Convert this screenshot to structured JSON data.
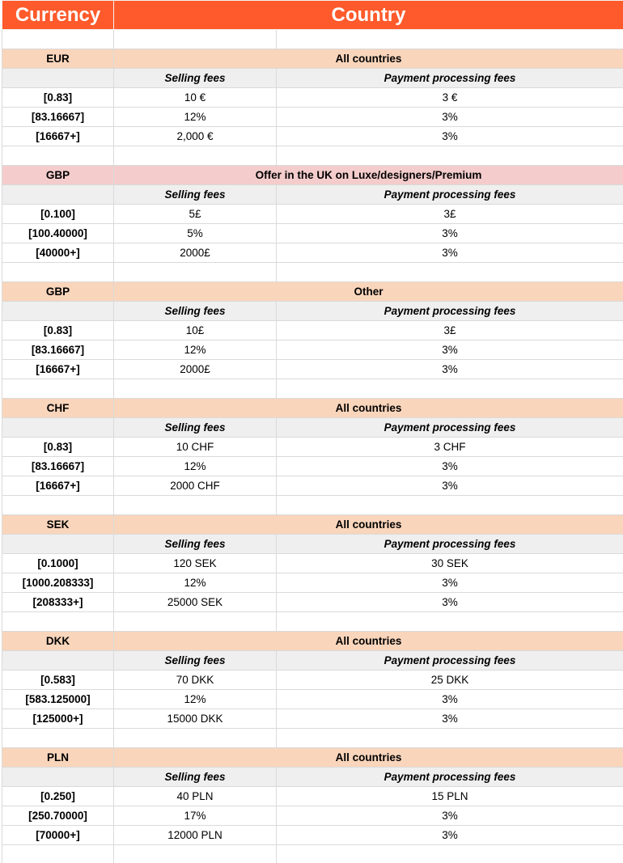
{
  "header": {
    "currency": "Currency",
    "country": "Country"
  },
  "colors": {
    "header": "#ff5a2b",
    "group": "#f9d5bb",
    "group_highlight": "#f4cccc",
    "subheader": "#efefef"
  },
  "subheader": {
    "selling": "Selling fees",
    "payment": "Payment processing fees"
  },
  "blocks": [
    {
      "currency": "EUR",
      "country": "All countries",
      "highlight": false,
      "rows": [
        {
          "range": "[0.83]",
          "selling": "10 €",
          "payment": "3 €"
        },
        {
          "range": "[83.16667]",
          "selling": "12%",
          "payment": "3%"
        },
        {
          "range": "[16667+]",
          "selling": "2,000 €",
          "payment": "3%"
        }
      ]
    },
    {
      "currency": "GBP",
      "country": "Offer in the UK on Luxe/designers/Premium",
      "highlight": true,
      "rows": [
        {
          "range": "[0.100]",
          "selling": "5£",
          "payment": "3£"
        },
        {
          "range": "[100.40000]",
          "selling": "5%",
          "payment": "3%"
        },
        {
          "range": "[40000+]",
          "selling": "2000£",
          "payment": "3%"
        }
      ]
    },
    {
      "currency": "GBP",
      "country": "Other",
      "highlight": false,
      "rows": [
        {
          "range": "[0.83]",
          "selling": "10£",
          "payment": "3£"
        },
        {
          "range": "[83.16667]",
          "selling": "12%",
          "payment": "3%"
        },
        {
          "range": "[16667+]",
          "selling": "2000£",
          "payment": "3%"
        }
      ]
    },
    {
      "currency": "CHF",
      "country": "All countries",
      "highlight": false,
      "rows": [
        {
          "range": "[0.83]",
          "selling": "10 CHF",
          "payment": "3 CHF"
        },
        {
          "range": "[83.16667]",
          "selling": "12%",
          "payment": "3%"
        },
        {
          "range": "[16667+]",
          "selling": "2000 CHF",
          "payment": "3%"
        }
      ]
    },
    {
      "currency": "SEK",
      "country": "All countries",
      "highlight": false,
      "rows": [
        {
          "range": "[0.1000]",
          "selling": "120 SEK",
          "payment": "30 SEK"
        },
        {
          "range": "[1000.208333]",
          "selling": "12%",
          "payment": "3%"
        },
        {
          "range": "[208333+]",
          "selling": "25000 SEK",
          "payment": "3%"
        }
      ]
    },
    {
      "currency": "DKK",
      "country": "All countries",
      "highlight": false,
      "rows": [
        {
          "range": "[0.583]",
          "selling": "70 DKK",
          "payment": "25 DKK"
        },
        {
          "range": "[583.125000]",
          "selling": "12%",
          "payment": "3%"
        },
        {
          "range": "[125000+]",
          "selling": "15000 DKK",
          "payment": "3%"
        }
      ]
    },
    {
      "currency": "PLN",
      "country": "All countries",
      "highlight": false,
      "rows": [
        {
          "range": "[0.250]",
          "selling": "40 PLN",
          "payment": "15 PLN"
        },
        {
          "range": "[250.70000]",
          "selling": "17%",
          "payment": "3%"
        },
        {
          "range": "[70000+]",
          "selling": "12000 PLN",
          "payment": "3%"
        }
      ]
    }
  ]
}
